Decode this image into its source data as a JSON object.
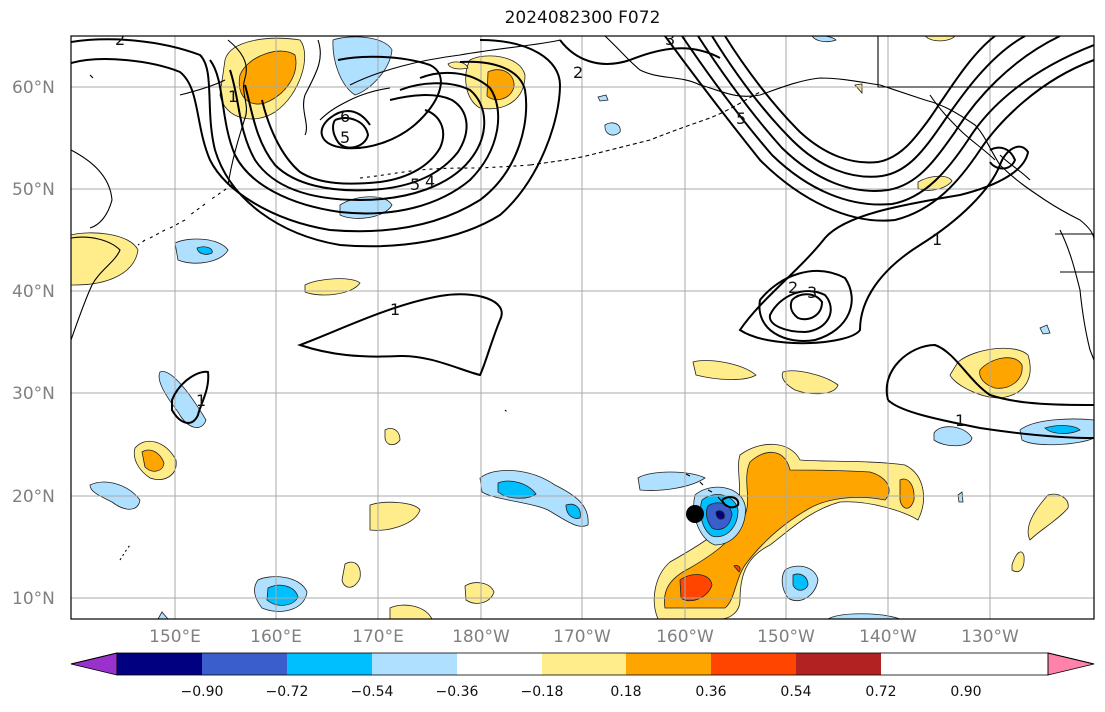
{
  "title": "2024082300 F072",
  "map": {
    "lat_labels": [
      "60°N",
      "50°N",
      "40°N",
      "30°N",
      "20°N",
      "10°N"
    ],
    "lon_labels": [
      "150°E",
      "160°E",
      "170°E",
      "180°W",
      "170°W",
      "160°W",
      "150°W",
      "140°W",
      "130°W"
    ],
    "contour_labels": [
      "2",
      "2",
      "6",
      "5",
      "5",
      "4",
      "3",
      "1",
      "2",
      "3",
      "1",
      "1",
      "1",
      "1",
      "5"
    ],
    "marker": "storm-center-dot"
  },
  "colorbar": {
    "colors": [
      "#9932cc",
      "#000080",
      "#3a5fcd",
      "#00bfff",
      "#b0e0ff",
      "#ffffff",
      "#ffec8b",
      "#ffa500",
      "#ff4500",
      "#b22222",
      "#ff82ab"
    ],
    "tick_labels": [
      "−0.90",
      "−0.72",
      "−0.54",
      "−0.36",
      "−0.18",
      "0.18",
      "0.36",
      "0.54",
      "0.72",
      "0.90"
    ]
  }
}
